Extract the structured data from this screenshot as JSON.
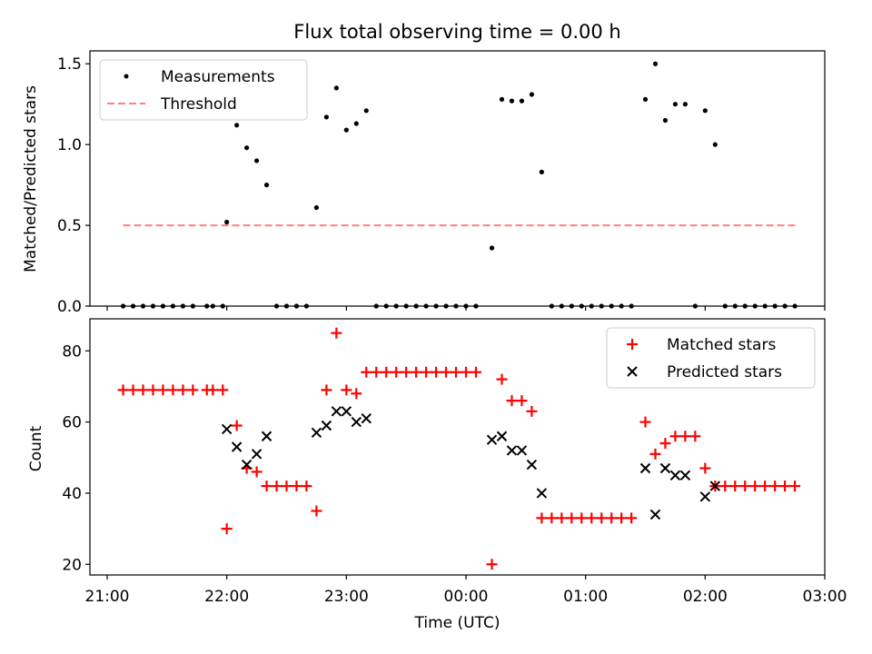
{
  "chart_data": [
    {
      "type": "scatter",
      "title": "Flux total observing time = 0.00 h",
      "xlabel": "",
      "ylabel": "Matched/Predicted stars",
      "x_unit": "time (UTC)",
      "xlim": [
        "21:00",
        "03:00"
      ],
      "ylim": [
        0,
        1.58
      ],
      "yticks": [
        "0.0",
        "0.5",
        "1.0",
        "1.5"
      ],
      "grid": false,
      "legend": "upper left",
      "series": [
        {
          "name": "Measurements",
          "color": "#000000",
          "marker": "dot",
          "points": [
            [
              "21:08",
              0
            ],
            [
              "21:13",
              0
            ],
            [
              "21:18",
              0
            ],
            [
              "21:23",
              0
            ],
            [
              "21:28",
              0
            ],
            [
              "21:33",
              0
            ],
            [
              "21:38",
              0
            ],
            [
              "21:43",
              0
            ],
            [
              "21:50",
              0
            ],
            [
              "21:53",
              0
            ],
            [
              "21:58",
              0
            ],
            [
              "22:00",
              0.52
            ],
            [
              "22:05",
              1.12
            ],
            [
              "22:10",
              0.98
            ],
            [
              "22:15",
              0.9
            ],
            [
              "22:20",
              0.75
            ],
            [
              "22:25",
              0
            ],
            [
              "22:30",
              0
            ],
            [
              "22:35",
              0
            ],
            [
              "22:40",
              0
            ],
            [
              "22:45",
              0.61
            ],
            [
              "22:50",
              1.17
            ],
            [
              "22:55",
              1.35
            ],
            [
              "23:00",
              1.09
            ],
            [
              "23:05",
              1.13
            ],
            [
              "23:10",
              1.21
            ],
            [
              "23:15",
              0
            ],
            [
              "23:20",
              0
            ],
            [
              "23:25",
              0
            ],
            [
              "23:30",
              0
            ],
            [
              "23:35",
              0
            ],
            [
              "23:40",
              0
            ],
            [
              "23:45",
              0
            ],
            [
              "23:50",
              0
            ],
            [
              "23:55",
              0
            ],
            [
              "00:00",
              0
            ],
            [
              "00:05",
              0
            ],
            [
              "00:13",
              0.36
            ],
            [
              "00:18",
              1.28
            ],
            [
              "00:23",
              1.27
            ],
            [
              "00:28",
              1.27
            ],
            [
              "00:33",
              1.31
            ],
            [
              "00:38",
              0.83
            ],
            [
              "00:43",
              0
            ],
            [
              "00:48",
              0
            ],
            [
              "00:53",
              0
            ],
            [
              "00:58",
              0
            ],
            [
              "01:03",
              0
            ],
            [
              "01:08",
              0
            ],
            [
              "01:13",
              0
            ],
            [
              "01:18",
              0
            ],
            [
              "01:23",
              0
            ],
            [
              "01:30",
              1.28
            ],
            [
              "01:35",
              1.5
            ],
            [
              "01:40",
              1.15
            ],
            [
              "01:45",
              1.25
            ],
            [
              "01:50",
              1.25
            ],
            [
              "01:55",
              0
            ],
            [
              "02:00",
              1.21
            ],
            [
              "02:05",
              1.0
            ],
            [
              "02:10",
              0
            ],
            [
              "02:15",
              0
            ],
            [
              "02:20",
              0
            ],
            [
              "02:25",
              0
            ],
            [
              "02:30",
              0
            ],
            [
              "02:35",
              0
            ],
            [
              "02:40",
              0
            ],
            [
              "02:45",
              0
            ]
          ]
        },
        {
          "name": "Threshold",
          "color": "#ff7f7f",
          "style": "dashed",
          "points": [
            [
              "21:08",
              0.5
            ],
            [
              "02:45",
              0.5
            ]
          ]
        }
      ]
    },
    {
      "type": "scatter",
      "title": "",
      "xlabel": "Time (UTC)",
      "ylabel": "Count",
      "xlim": [
        "21:00",
        "03:00"
      ],
      "ylim": [
        17,
        89
      ],
      "xticks": [
        "21:00",
        "22:00",
        "23:00",
        "00:00",
        "01:00",
        "02:00",
        "03:00"
      ],
      "yticks": [
        "20",
        "40",
        "60",
        "80"
      ],
      "grid": false,
      "legend": "upper right",
      "series": [
        {
          "name": "Matched stars",
          "color": "#ff0000",
          "marker": "plus",
          "points": [
            [
              "21:08",
              69
            ],
            [
              "21:13",
              69
            ],
            [
              "21:18",
              69
            ],
            [
              "21:23",
              69
            ],
            [
              "21:28",
              69
            ],
            [
              "21:33",
              69
            ],
            [
              "21:38",
              69
            ],
            [
              "21:43",
              69
            ],
            [
              "21:50",
              69
            ],
            [
              "21:53",
              69
            ],
            [
              "21:58",
              69
            ],
            [
              "22:00",
              30
            ],
            [
              "22:05",
              59
            ],
            [
              "22:10",
              47
            ],
            [
              "22:15",
              46
            ],
            [
              "22:20",
              42
            ],
            [
              "22:25",
              42
            ],
            [
              "22:30",
              42
            ],
            [
              "22:35",
              42
            ],
            [
              "22:40",
              42
            ],
            [
              "22:45",
              35
            ],
            [
              "22:50",
              69
            ],
            [
              "22:55",
              85
            ],
            [
              "23:00",
              69
            ],
            [
              "23:05",
              68
            ],
            [
              "23:10",
              74
            ],
            [
              "23:15",
              74
            ],
            [
              "23:20",
              74
            ],
            [
              "23:25",
              74
            ],
            [
              "23:30",
              74
            ],
            [
              "23:35",
              74
            ],
            [
              "23:40",
              74
            ],
            [
              "23:45",
              74
            ],
            [
              "23:50",
              74
            ],
            [
              "23:55",
              74
            ],
            [
              "00:00",
              74
            ],
            [
              "00:05",
              74
            ],
            [
              "00:13",
              20
            ],
            [
              "00:18",
              72
            ],
            [
              "00:23",
              66
            ],
            [
              "00:28",
              66
            ],
            [
              "00:33",
              63
            ],
            [
              "00:38",
              33
            ],
            [
              "00:43",
              33
            ],
            [
              "00:48",
              33
            ],
            [
              "00:53",
              33
            ],
            [
              "00:58",
              33
            ],
            [
              "01:03",
              33
            ],
            [
              "01:08",
              33
            ],
            [
              "01:13",
              33
            ],
            [
              "01:18",
              33
            ],
            [
              "01:23",
              33
            ],
            [
              "01:30",
              60
            ],
            [
              "01:35",
              51
            ],
            [
              "01:40",
              54
            ],
            [
              "01:45",
              56
            ],
            [
              "01:50",
              56
            ],
            [
              "01:55",
              56
            ],
            [
              "02:00",
              47
            ],
            [
              "02:05",
              42
            ],
            [
              "02:10",
              42
            ],
            [
              "02:15",
              42
            ],
            [
              "02:20",
              42
            ],
            [
              "02:25",
              42
            ],
            [
              "02:30",
              42
            ],
            [
              "02:35",
              42
            ],
            [
              "02:40",
              42
            ],
            [
              "02:45",
              42
            ]
          ]
        },
        {
          "name": "Predicted stars",
          "color": "#000000",
          "marker": "x",
          "points": [
            [
              "22:00",
              58
            ],
            [
              "22:05",
              53
            ],
            [
              "22:10",
              48
            ],
            [
              "22:15",
              51
            ],
            [
              "22:20",
              56
            ],
            [
              "22:45",
              57
            ],
            [
              "22:50",
              59
            ],
            [
              "22:55",
              63
            ],
            [
              "23:00",
              63
            ],
            [
              "23:05",
              60
            ],
            [
              "23:10",
              61
            ],
            [
              "00:13",
              55
            ],
            [
              "00:18",
              56
            ],
            [
              "00:23",
              52
            ],
            [
              "00:28",
              52
            ],
            [
              "00:33",
              48
            ],
            [
              "00:38",
              40
            ],
            [
              "01:30",
              47
            ],
            [
              "01:35",
              34
            ],
            [
              "01:40",
              47
            ],
            [
              "01:45",
              45
            ],
            [
              "01:50",
              45
            ],
            [
              "02:00",
              39
            ],
            [
              "02:05",
              42
            ]
          ]
        }
      ]
    }
  ]
}
